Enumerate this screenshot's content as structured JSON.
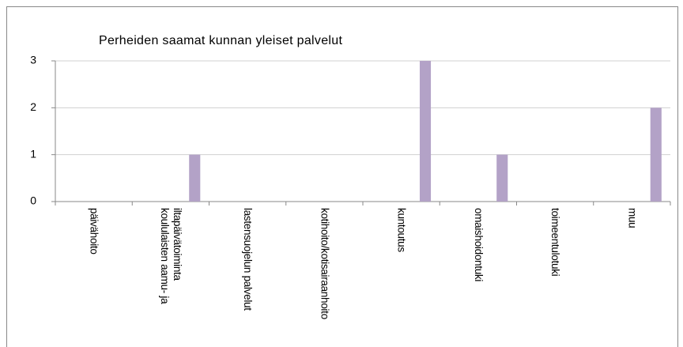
{
  "chart_data": {
    "type": "bar",
    "title": "Perheiden saamat kunnan yleiset palvelut",
    "categories": [
      "päivähoito",
      "koululaisten aamu- ja iltapäivätoiminta",
      "lastensuojelun palvelut",
      "kotihoito/kotisairaanhoito",
      "kuntoutus",
      "omaishoidontuki",
      "toimeentulotuki",
      "muu"
    ],
    "values": [
      0,
      1,
      0,
      0,
      3,
      1,
      0,
      2
    ],
    "color": "#b3a2c7",
    "ylim": [
      0,
      3
    ],
    "yticks": [
      0,
      1,
      2,
      3
    ],
    "grid": true
  }
}
